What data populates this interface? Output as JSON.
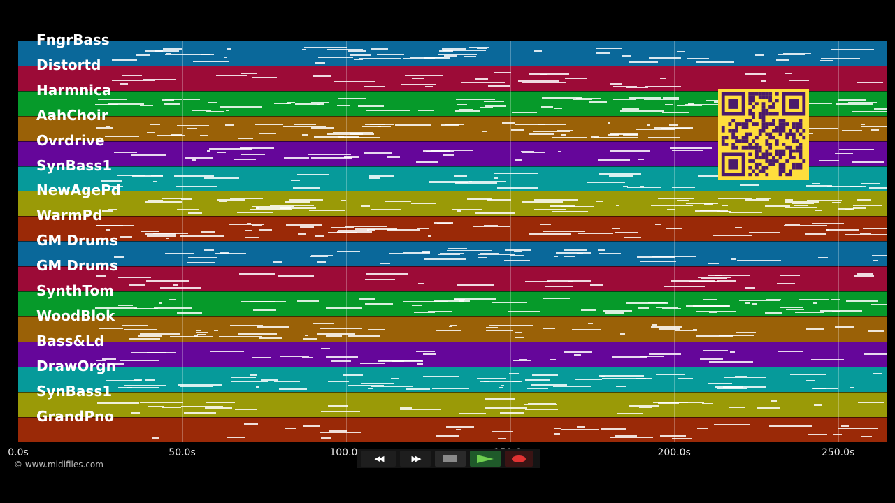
{
  "tracks": [
    {
      "label": "FngrBass",
      "color": "#0a689a"
    },
    {
      "label": "Distortd",
      "color": "#9c0b37"
    },
    {
      "label": "Harmnica",
      "color": "#069a2a"
    },
    {
      "label": "AahChoir",
      "color": "#9a6107"
    },
    {
      "label": "Ovrdrive",
      "color": "#65069a"
    },
    {
      "label": "SynBass1",
      "color": "#069a9a"
    },
    {
      "label": "NewAgePd",
      "color": "#9a9a07"
    },
    {
      "label": "WarmPd",
      "color": "#9a2907"
    },
    {
      "label": "GM Drums",
      "color": "#0a689a"
    },
    {
      "label": "GM Drums",
      "color": "#9c0b37"
    },
    {
      "label": "SynthTom",
      "color": "#069a2a"
    },
    {
      "label": "WoodBlok",
      "color": "#9a6107"
    },
    {
      "label": "Bass&Ld",
      "color": "#65069a"
    },
    {
      "label": "DrawOrgn",
      "color": "#069a9a"
    },
    {
      "label": "SynBass1",
      "color": "#9a9a07"
    },
    {
      "label": "GrandPno",
      "color": "#9a2907"
    }
  ],
  "time_axis": {
    "labels": [
      "0.0s",
      "50.0s",
      "100.0s",
      "150.0s",
      "200.0s",
      "250.0s"
    ],
    "max_seconds": 265
  },
  "copyright": "© www.midifiles.com",
  "transport": {
    "rewind": {
      "icon": "rewind-icon",
      "glyph": "◀◀"
    },
    "fast_forward": {
      "icon": "fast-forward-icon",
      "glyph": "▶▶"
    },
    "stop": {
      "icon": "stop-icon"
    },
    "play": {
      "icon": "play-icon",
      "color": "#6fcf4f"
    },
    "record": {
      "icon": "record-icon",
      "color": "#e03232"
    }
  },
  "qr_code": {
    "color": "#ffde3d",
    "module_color": "#4a1a6b"
  }
}
